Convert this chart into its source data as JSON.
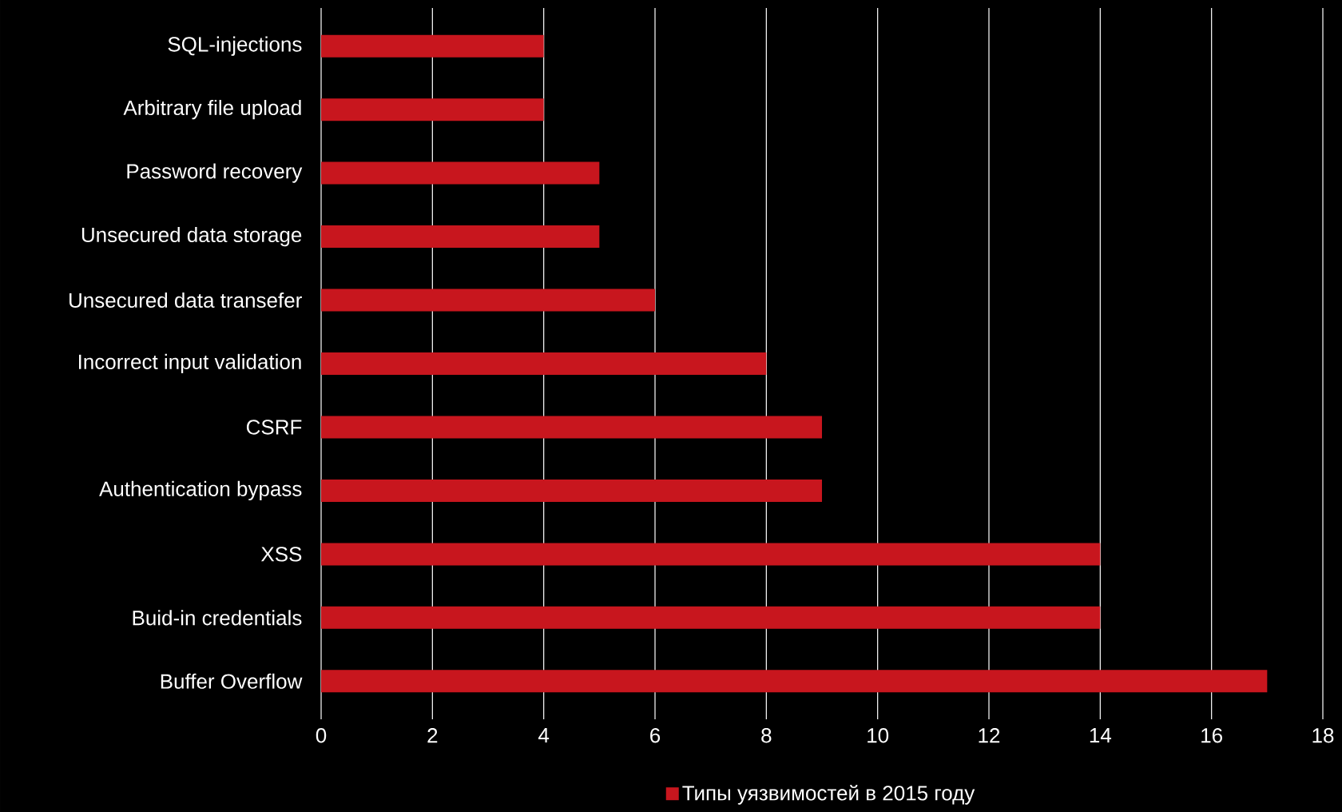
{
  "chart_data": {
    "type": "bar",
    "orientation": "horizontal",
    "categories": [
      "SQL-injections",
      "Arbitrary file upload",
      "Password recovery",
      "Unsecured data storage",
      "Unsecured data transefer",
      "Incorrect input validation",
      "CSRF",
      "Authentication bypass",
      "XSS",
      "Buid-in credentials",
      "Buffer Overflow"
    ],
    "series": [
      {
        "name": "Типы уязвимостей в 2015 году",
        "color": "#c8161e",
        "values": [
          4,
          4,
          5,
          5,
          6,
          8,
          9,
          9,
          14,
          14,
          17
        ]
      }
    ],
    "xlim": [
      0,
      18
    ],
    "xticks": [
      0,
      2,
      4,
      6,
      8,
      10,
      12,
      14,
      16,
      18
    ],
    "grid": "x",
    "legend": "bottom"
  }
}
